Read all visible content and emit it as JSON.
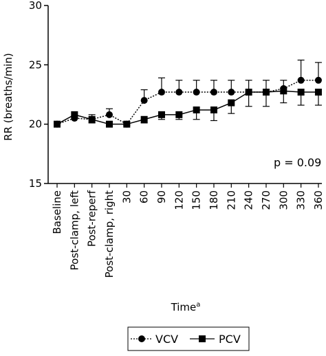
{
  "chart_data": {
    "type": "line",
    "ylabel": "RR (breaths/min)",
    "xlabel": "Time",
    "xlabel_superscript": "a",
    "ylim": [
      15,
      30
    ],
    "yticks": [
      15,
      20,
      25,
      30
    ],
    "categories": [
      "Baseline",
      "Post-clamp, left",
      "Post-reperf",
      "Post-clamp, right",
      "30",
      "60",
      "90",
      "120",
      "150",
      "180",
      "210",
      "240",
      "270",
      "300",
      "330",
      "360"
    ],
    "series": [
      {
        "name": "VCV",
        "marker": "circle",
        "line_style": "dotted",
        "values": [
          20.0,
          20.5,
          20.4,
          20.8,
          20.0,
          22.0,
          22.7,
          22.7,
          22.7,
          22.7,
          22.7,
          22.7,
          22.7,
          23.0,
          23.7,
          23.7
        ],
        "errors": [
          0.1,
          0.2,
          0.4,
          0.5,
          0.1,
          0.9,
          1.2,
          1.0,
          1.0,
          1.0,
          1.0,
          1.0,
          1.0,
          0.7,
          1.7,
          1.5
        ]
      },
      {
        "name": "PCV",
        "marker": "square",
        "line_style": "solid",
        "values": [
          20.0,
          20.8,
          20.4,
          20.0,
          20.0,
          20.4,
          20.8,
          20.8,
          21.2,
          21.2,
          21.8,
          22.7,
          22.7,
          22.8,
          22.7,
          22.7
        ],
        "errors": [
          0.1,
          0.3,
          0.3,
          0.1,
          0.1,
          0.3,
          0.4,
          0.4,
          0.8,
          0.9,
          0.9,
          1.2,
          1.2,
          1.0,
          1.1,
          1.1
        ]
      }
    ],
    "annotations": [
      {
        "text": "p = 0.09"
      }
    ],
    "legend": {
      "position": "bottom"
    },
    "grid": false,
    "colors": {
      "line": "#000000",
      "background": "#ffffff"
    }
  }
}
